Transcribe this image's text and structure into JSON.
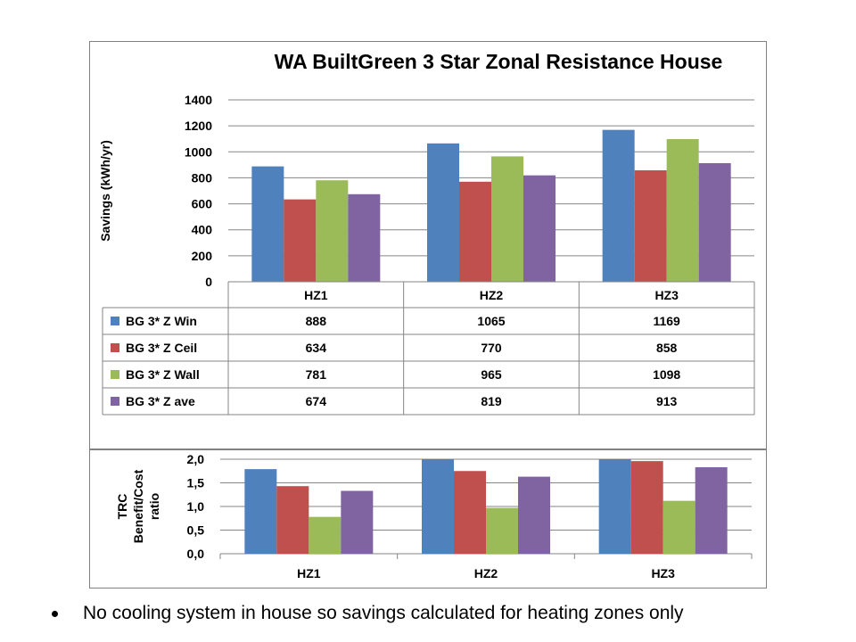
{
  "colors": {
    "win": "#4F81BD",
    "ceil": "#C0504D",
    "wall": "#9BBB59",
    "ave": "#8064A2",
    "grid": "#868686"
  },
  "chart_data": [
    {
      "type": "bar",
      "title": "WA BuiltGreen 3 Star Zonal Resistance House",
      "xlabel": "",
      "ylabel": "Savings (kWh/yr)",
      "categories": [
        "HZ1",
        "HZ2",
        "HZ3"
      ],
      "ylim": [
        0,
        1400
      ],
      "yticks": [
        "0",
        "200",
        "400",
        "600",
        "800",
        "1000",
        "1200",
        "1400"
      ],
      "grid": true,
      "legend": "data-table",
      "series": [
        {
          "name": "BG 3* Z Win",
          "values": [
            888,
            1065,
            1169
          ],
          "color": "win"
        },
        {
          "name": "BG 3* Z Ceil",
          "values": [
            634,
            770,
            858
          ],
          "color": "ceil"
        },
        {
          "name": "BG 3* Z Wall",
          "values": [
            781,
            965,
            1098
          ],
          "color": "wall"
        },
        {
          "name": "BG 3* Z ave",
          "values": [
            674,
            819,
            913
          ],
          "color": "ave"
        }
      ]
    },
    {
      "type": "bar",
      "title": "",
      "xlabel": "",
      "ylabel": "TRC Benefit/Cost ratio",
      "ylabel_lines": [
        "TRC",
        "Benefit/Cost",
        "ratio"
      ],
      "categories": [
        "HZ1",
        "HZ2",
        "HZ3"
      ],
      "ylim": [
        0,
        2.0
      ],
      "yticks": [
        "0,0",
        "0,5",
        "1,0",
        "1,5",
        "2,0"
      ],
      "grid": true,
      "series": [
        {
          "values": [
            1.79,
            2.0,
            2.0
          ],
          "color": "win"
        },
        {
          "values": [
            1.43,
            1.75,
            1.96
          ],
          "color": "ceil"
        },
        {
          "values": [
            0.78,
            0.97,
            1.12
          ],
          "color": "wall"
        },
        {
          "values": [
            1.33,
            1.63,
            1.83
          ],
          "color": "ave"
        }
      ]
    }
  ],
  "footer": {
    "bullet_text": "No cooling system in house so savings calculated for heating zones only"
  }
}
